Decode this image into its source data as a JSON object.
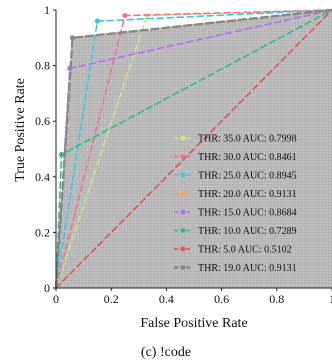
{
  "chart_data": {
    "type": "line",
    "xlabel": "False Positive Rate",
    "ylabel": "True Positive Rate",
    "caption": "(c) !code",
    "xlim": [
      0,
      1
    ],
    "ylim": [
      0,
      1
    ],
    "xticks": [
      "0",
      "0.2",
      "0.4",
      "0.6",
      "0.8",
      "1"
    ],
    "yticks": [
      "0",
      "0.2",
      "0.4",
      "0.6",
      "0.8",
      "1"
    ],
    "grid": false,
    "legend_position": "lower-right",
    "series": [
      {
        "name": "THR: 35.0 AUC: 0.7998",
        "color": "#c7e87e",
        "x": [
          0,
          0.33,
          1
        ],
        "y": [
          0,
          0.98,
          1
        ]
      },
      {
        "name": "THR: 30.0 AUC: 0.8461",
        "color": "#f0708f",
        "x": [
          0,
          0.25,
          1
        ],
        "y": [
          0,
          0.98,
          1
        ]
      },
      {
        "name": "THR: 25.0 AUC: 0.8945",
        "color": "#39c6e8",
        "x": [
          0,
          0.15,
          1
        ],
        "y": [
          0,
          0.96,
          1
        ]
      },
      {
        "name": "THR: 20.0 AUC: 0.9131",
        "color": "#f5a35a",
        "x": [
          0,
          0.06,
          1
        ],
        "y": [
          0,
          0.9,
          1
        ]
      },
      {
        "name": "THR: 15.0 AUC: 0.8684",
        "color": "#b36ef0",
        "x": [
          0,
          0.05,
          1
        ],
        "y": [
          0,
          0.79,
          1
        ]
      },
      {
        "name": "THR: 10.0 AUC: 0.7289",
        "color": "#2bbd85",
        "x": [
          0,
          0.02,
          1
        ],
        "y": [
          0,
          0.48,
          1
        ]
      },
      {
        "name": "THR: 5.0 AUC: 0.5102",
        "color": "#e8524a",
        "x": [
          0,
          1
        ],
        "y": [
          0,
          1
        ]
      },
      {
        "name": "THR: 19.0 AUC: 0.9131",
        "color": "#888888",
        "x": [
          0,
          0.06,
          1
        ],
        "y": [
          0,
          0.9,
          1
        ]
      }
    ]
  }
}
